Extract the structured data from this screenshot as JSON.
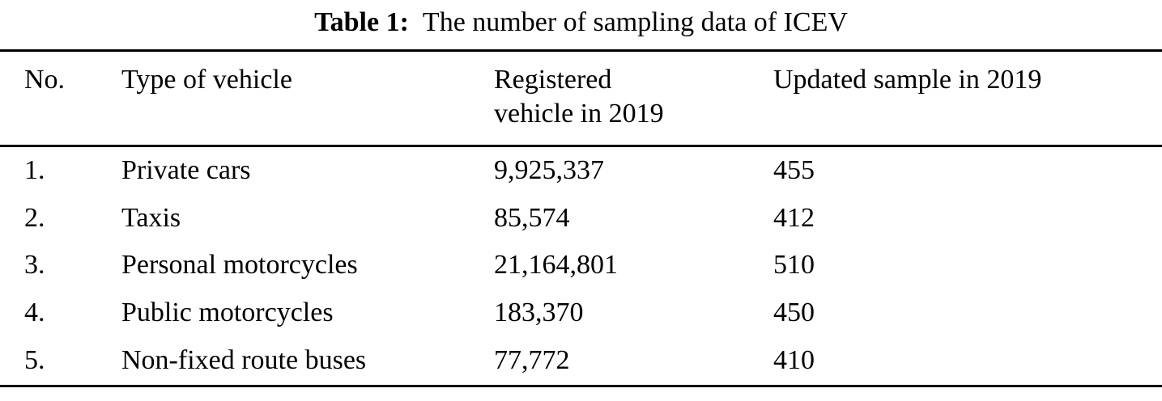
{
  "caption": {
    "label": "Table 1:",
    "text": "The number of sampling data of ICEV"
  },
  "table": {
    "header": {
      "no": "No.",
      "type": "Type of vehicle",
      "registered_line1": "Registered",
      "registered_line2": "vehicle in 2019",
      "updated": "Updated sample in 2019"
    },
    "rows": [
      {
        "no": "1.",
        "type": "Private cars",
        "registered": "9,925,337",
        "updated": "455"
      },
      {
        "no": "2.",
        "type": "Taxis",
        "registered": "85,574",
        "updated": "412"
      },
      {
        "no": "3.",
        "type": "Personal motorcycles",
        "registered": "21,164,801",
        "updated": "510"
      },
      {
        "no": "4.",
        "type": "Public motorcycles",
        "registered": "183,370",
        "updated": "450"
      },
      {
        "no": "5.",
        "type": "Non-fixed route buses",
        "registered": "77,772",
        "updated": "410"
      }
    ]
  }
}
